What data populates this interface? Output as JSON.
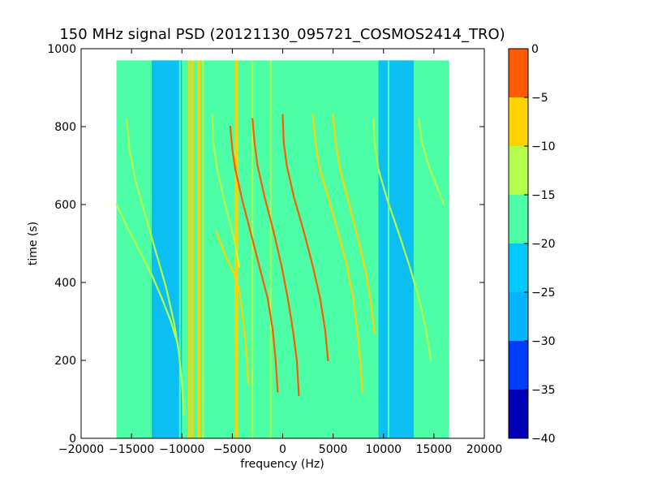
{
  "chart_data": {
    "type": "heatmap",
    "title": "150 MHz signal PSD (20121130_095721_COSMOS2414_TRO)",
    "xlabel": "frequency (Hz)",
    "ylabel": "time (s)",
    "xlim": [
      -20000,
      20000
    ],
    "ylim": [
      0,
      1000
    ],
    "xticks": [
      -20000,
      -15000,
      -10000,
      -5000,
      0,
      5000,
      10000,
      15000,
      20000
    ],
    "xtick_labels": [
      "−20000",
      "−15000",
      "−10000",
      "−5000",
      "0",
      "5000",
      "10000",
      "15000",
      "20000"
    ],
    "yticks": [
      0,
      200,
      400,
      600,
      800,
      1000
    ],
    "ytick_labels": [
      "0",
      "200",
      "400",
      "600",
      "800",
      "1000"
    ],
    "data_extent": {
      "x": [
        -16500,
        16500
      ],
      "y": [
        0,
        970
      ]
    },
    "background_level": "-25 to -20",
    "low_level_bands": [
      {
        "x": [
          -13000,
          -10000
        ],
        "level": "-30 to -25"
      },
      {
        "x": [
          9500,
          13000
        ],
        "level": "-30 to -25"
      }
    ],
    "constant_lines": [
      {
        "x": -10200,
        "level": "-25 to -20"
      },
      {
        "x": -9300,
        "level": "-15 to -10"
      },
      {
        "x": -9100,
        "level": "-15 to -10"
      },
      {
        "x": -8900,
        "level": "-15 to -10"
      },
      {
        "x": -8400,
        "level": "-15 to -10"
      },
      {
        "x": -8250,
        "level": "-15 to -10"
      },
      {
        "x": -7900,
        "level": "-20 to -15"
      },
      {
        "x": -4700,
        "level": "-15 to -10"
      },
      {
        "x": -4500,
        "level": "-15 to -10"
      },
      {
        "x": -3000,
        "level": "-20 to -15"
      },
      {
        "x": -1200,
        "level": "-20 to -15"
      },
      {
        "x": 10500,
        "level": "-25 to -20"
      }
    ],
    "drift_tracks": [
      {
        "level": "-10 to -5",
        "points": [
          [
            -5200,
            800
          ],
          [
            -5000,
            740
          ],
          [
            -4700,
            690
          ],
          [
            -4000,
            610
          ],
          [
            -3100,
            520
          ],
          [
            -2300,
            440
          ],
          [
            -1500,
            360
          ],
          [
            -1000,
            280
          ],
          [
            -700,
            200
          ],
          [
            -500,
            120
          ]
        ]
      },
      {
        "level": "-10 to -5",
        "points": [
          [
            -3000,
            820
          ],
          [
            -2800,
            760
          ],
          [
            -2500,
            700
          ],
          [
            -1800,
            620
          ],
          [
            -900,
            530
          ],
          [
            -100,
            440
          ],
          [
            500,
            360
          ],
          [
            1000,
            280
          ],
          [
            1400,
            200
          ],
          [
            1600,
            110
          ]
        ]
      },
      {
        "level": "-10 to -5",
        "points": [
          [
            0,
            830
          ],
          [
            100,
            760
          ],
          [
            400,
            700
          ],
          [
            1100,
            620
          ],
          [
            2100,
            530
          ],
          [
            3000,
            440
          ],
          [
            3700,
            360
          ],
          [
            4200,
            280
          ],
          [
            4500,
            200
          ]
        ]
      },
      {
        "level": "-15 to -10",
        "points": [
          [
            3000,
            830
          ],
          [
            3200,
            770
          ],
          [
            3600,
            700
          ],
          [
            4600,
            610
          ],
          [
            5600,
            520
          ],
          [
            6400,
            440
          ],
          [
            7000,
            360
          ],
          [
            7400,
            280
          ],
          [
            7700,
            200
          ],
          [
            7900,
            120
          ]
        ]
      },
      {
        "level": "-15 to -10",
        "points": [
          [
            5000,
            830
          ],
          [
            5200,
            770
          ],
          [
            5700,
            690
          ],
          [
            6600,
            600
          ],
          [
            7600,
            500
          ],
          [
            8300,
            420
          ],
          [
            8800,
            340
          ],
          [
            9100,
            270
          ]
        ]
      },
      {
        "level": "-15 to -10",
        "points": [
          [
            -6600,
            530
          ],
          [
            -5700,
            470
          ],
          [
            -4800,
            420
          ],
          [
            -4300,
            380
          ],
          [
            -3900,
            300
          ],
          [
            -3600,
            220
          ],
          [
            -3400,
            140
          ]
        ]
      },
      {
        "level": "-20 to -15",
        "points": [
          [
            -15500,
            820
          ],
          [
            -15200,
            740
          ],
          [
            -14600,
            660
          ],
          [
            -13600,
            570
          ],
          [
            -12600,
            480
          ],
          [
            -11600,
            390
          ],
          [
            -10800,
            300
          ],
          [
            -10300,
            220
          ],
          [
            -10000,
            140
          ],
          [
            -9800,
            60
          ]
        ]
      },
      {
        "level": "-20 to -15",
        "points": [
          [
            -16500,
            600
          ],
          [
            -15400,
            540
          ],
          [
            -14200,
            480
          ],
          [
            -13000,
            420
          ],
          [
            -12000,
            360
          ],
          [
            -11100,
            300
          ],
          [
            -10500,
            250
          ]
        ]
      },
      {
        "level": "-20 to -15",
        "points": [
          [
            -7000,
            830
          ],
          [
            -6900,
            760
          ],
          [
            -6500,
            690
          ],
          [
            -5800,
            610
          ],
          [
            -4900,
            520
          ],
          [
            -4300,
            440
          ]
        ]
      },
      {
        "level": "-20 to -15",
        "points": [
          [
            9000,
            820
          ],
          [
            9100,
            760
          ],
          [
            9500,
            690
          ],
          [
            10400,
            610
          ],
          [
            11600,
            520
          ],
          [
            12600,
            440
          ],
          [
            13500,
            360
          ],
          [
            14200,
            280
          ],
          [
            14700,
            200
          ]
        ]
      },
      {
        "level": "-20 to -15",
        "points": [
          [
            13500,
            820
          ],
          [
            13800,
            760
          ],
          [
            14600,
            690
          ],
          [
            15400,
            640
          ],
          [
            16000,
            600
          ]
        ]
      }
    ],
    "colorbar": {
      "levels": [
        -40,
        -35,
        -30,
        -25,
        -20,
        -15,
        -10,
        -5,
        0
      ],
      "tick_labels": [
        "−40",
        "−35",
        "−30",
        "−25",
        "−20",
        "−15",
        "−10",
        "−5",
        "0"
      ],
      "colors": [
        "#0000b4",
        "#003cff",
        "#00b4ff",
        "#00c8ff",
        "#4cffa6",
        "#b4ff4c",
        "#ffd300",
        "#ff5a00",
        "#c00000"
      ]
    },
    "grid": false,
    "legend": "none"
  }
}
